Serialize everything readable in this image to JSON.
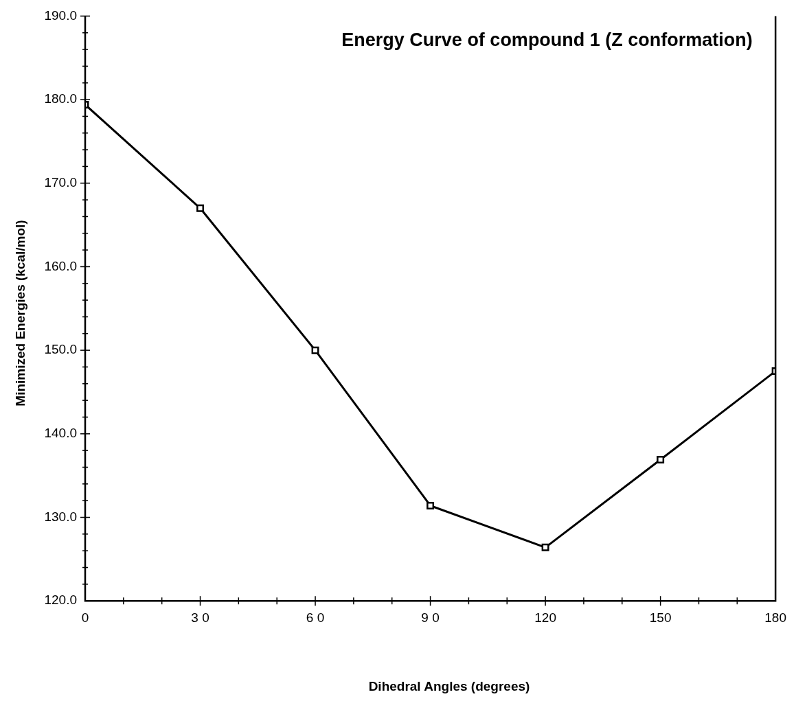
{
  "chart_data": {
    "type": "line",
    "title": "Energy Curve of compound 1 (Z conformation)",
    "xlabel": "Dihedral Angles (degrees)",
    "ylabel": "Minimized Energies (kcal/mol)",
    "x": [
      0,
      30,
      60,
      90,
      120,
      150,
      180
    ],
    "series": [
      {
        "color": "#000000",
        "values": [
          179.4,
          167.0,
          150.0,
          131.4,
          126.4,
          136.9,
          147.5
        ]
      }
    ],
    "xlim": [
      0,
      180
    ],
    "xticks": [
      0,
      {
        "value": 10,
        "label": null
      },
      {
        "value": 20,
        "label": null
      },
      {
        "value": 30,
        "label": "3 0"
      },
      {
        "value": 40,
        "label": null
      },
      {
        "value": 50,
        "label": null
      },
      {
        "value": 60,
        "label": "6 0"
      },
      {
        "value": 70,
        "label": null
      },
      {
        "value": 80,
        "label": null
      },
      {
        "value": 90,
        "label": "9 0"
      },
      {
        "value": 100,
        "label": null
      },
      {
        "value": 110,
        "label": null
      },
      120,
      {
        "value": 130,
        "label": null
      },
      {
        "value": 140,
        "label": null
      },
      150,
      {
        "value": 160,
        "label": null
      },
      {
        "value": 170,
        "label": null
      },
      180
    ],
    "ylim": [
      120,
      190
    ],
    "yticks": [
      {
        "value": 120,
        "label": "120.0"
      },
      {
        "value": 122,
        "label": null
      },
      {
        "value": 124,
        "label": null
      },
      {
        "value": 126,
        "label": null
      },
      {
        "value": 128,
        "label": null
      },
      {
        "value": 130,
        "label": "130.0"
      },
      {
        "value": 132,
        "label": null
      },
      {
        "value": 134,
        "label": null
      },
      {
        "value": 136,
        "label": null
      },
      {
        "value": 138,
        "label": null
      },
      {
        "value": 140,
        "label": "140.0"
      },
      {
        "value": 142,
        "label": null
      },
      {
        "value": 144,
        "label": null
      },
      {
        "value": 146,
        "label": null
      },
      {
        "value": 148,
        "label": null
      },
      {
        "value": 150,
        "label": "150.0"
      },
      {
        "value": 152,
        "label": null
      },
      {
        "value": 154,
        "label": null
      },
      {
        "value": 156,
        "label": null
      },
      {
        "value": 158,
        "label": null
      },
      {
        "value": 160,
        "label": "160.0"
      },
      {
        "value": 162,
        "label": null
      },
      {
        "value": 164,
        "label": null
      },
      {
        "value": 166,
        "label": null
      },
      {
        "value": 168,
        "label": null
      },
      {
        "value": 170,
        "label": "170.0"
      },
      {
        "value": 172,
        "label": null
      },
      {
        "value": 174,
        "label": null
      },
      {
        "value": 176,
        "label": null
      },
      {
        "value": 178,
        "label": null
      },
      {
        "value": 180,
        "label": "180.0"
      },
      {
        "value": 182,
        "label": null
      },
      {
        "value": 184,
        "label": null
      },
      {
        "value": 186,
        "label": null
      },
      {
        "value": 188,
        "label": null
      },
      {
        "value": 190,
        "label": "190.0"
      }
    ],
    "grid": false,
    "legend": false,
    "marker": "square",
    "line_style": "solid"
  }
}
